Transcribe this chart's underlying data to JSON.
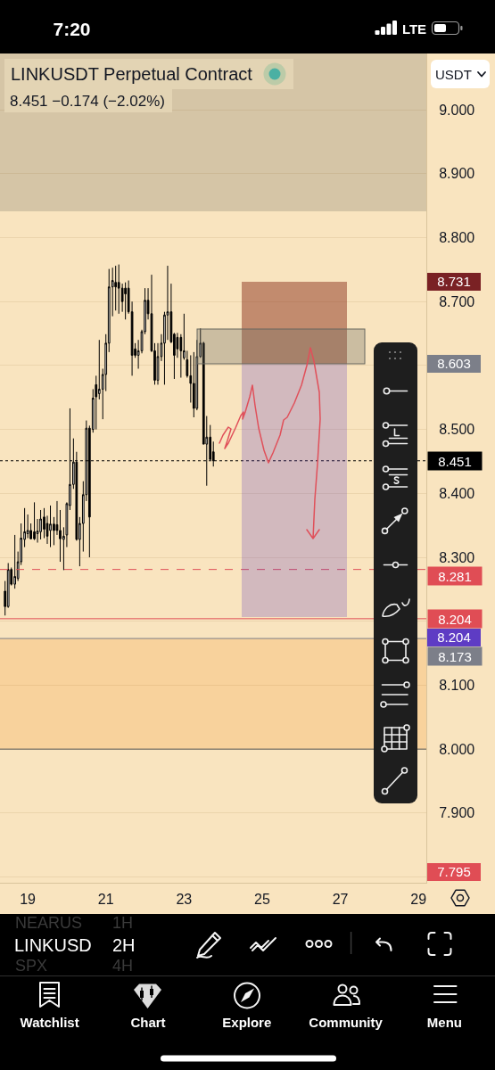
{
  "chart_data": {
    "type": "candlestick",
    "title": "LINKUSDT Perpetual Contract",
    "subtitle": "8.451 −0.174 (−2.02%)",
    "annotations": [
      "7:20",
      "LTE",
      "USDT",
      "NEARUS",
      "1H",
      "LINKUSD",
      "2H",
      "SPX",
      "4H",
      "Watchlist",
      "Chart",
      "Explore",
      "Community",
      "Menu",
      "8.731",
      "8.603",
      "8.204",
      "7.795"
    ],
    "x": [
      18.42,
      18.5,
      18.58,
      18.67,
      18.75,
      18.83,
      18.92,
      19,
      19.08,
      19.17,
      19.25,
      19.33,
      19.42,
      19.5,
      19.58,
      19.67,
      19.75,
      19.83,
      19.92,
      20,
      20.08,
      20.17,
      20.25,
      20.33,
      20.42,
      20.5,
      20.58,
      20.67,
      20.75,
      20.83,
      20.92,
      21,
      21.08,
      21.17,
      21.25,
      21.33,
      21.42,
      21.5,
      21.58,
      21.67,
      21.75,
      21.83,
      21.92,
      22,
      22.08,
      22.17,
      22.25,
      22.33,
      22.42,
      22.5,
      22.58,
      22.67,
      22.75,
      22.83,
      22.92,
      23,
      23.08,
      23.17,
      23.25,
      23.33,
      23.42,
      23.5,
      23.58,
      23.67,
      23.75
    ],
    "ohlc": [
      [
        8.247,
        8.263,
        8.209,
        8.223
      ],
      [
        8.223,
        8.291,
        8.221,
        8.281
      ],
      [
        8.281,
        8.284,
        8.256,
        8.258
      ],
      [
        8.258,
        8.335,
        8.251,
        8.27
      ],
      [
        8.267,
        8.309,
        8.263,
        8.293
      ],
      [
        8.293,
        8.353,
        8.288,
        8.33
      ],
      [
        8.328,
        8.377,
        8.316,
        8.34
      ],
      [
        8.337,
        8.367,
        8.33,
        8.342
      ],
      [
        8.342,
        8.353,
        8.328,
        8.329
      ],
      [
        8.34,
        8.386,
        8.327,
        8.329
      ],
      [
        8.337,
        8.36,
        8.323,
        8.341
      ],
      [
        8.34,
        8.374,
        8.328,
        8.36
      ],
      [
        8.363,
        8.377,
        8.33,
        8.344
      ],
      [
        8.353,
        8.365,
        8.321,
        8.333
      ],
      [
        8.342,
        8.381,
        8.316,
        8.352
      ],
      [
        8.352,
        8.363,
        8.319,
        8.342
      ],
      [
        8.351,
        8.388,
        8.335,
        8.342
      ],
      [
        8.342,
        8.374,
        8.293,
        8.329
      ],
      [
        8.328,
        8.347,
        8.28,
        8.333
      ],
      [
        8.335,
        8.386,
        8.316,
        8.384
      ],
      [
        8.381,
        8.533,
        8.374,
        8.414
      ],
      [
        8.414,
        8.486,
        8.407,
        8.449
      ],
      [
        8.449,
        8.465,
        8.326,
        8.328
      ],
      [
        8.328,
        8.363,
        8.286,
        8.353
      ],
      [
        8.353,
        8.419,
        8.309,
        8.398
      ],
      [
        8.398,
        8.514,
        8.388,
        8.502
      ],
      [
        8.502,
        8.506,
        8.3,
        8.363
      ],
      [
        8.5,
        8.563,
        8.495,
        8.549
      ],
      [
        8.57,
        8.584,
        8.5,
        8.551
      ],
      [
        8.556,
        8.64,
        8.547,
        8.563
      ],
      [
        8.563,
        8.595,
        8.516,
        8.586
      ],
      [
        8.586,
        8.649,
        8.56,
        8.635
      ],
      [
        8.635,
        8.751,
        8.621,
        8.723
      ],
      [
        8.723,
        8.753,
        8.677,
        8.733
      ],
      [
        8.73,
        8.756,
        8.686,
        8.723
      ],
      [
        8.73,
        8.758,
        8.681,
        8.721
      ],
      [
        8.721,
        8.728,
        8.684,
        8.7
      ],
      [
        8.721,
        8.73,
        8.672,
        8.712
      ],
      [
        8.721,
        8.733,
        8.681,
        8.684
      ],
      [
        8.684,
        8.7,
        8.584,
        8.616
      ],
      [
        8.626,
        8.635,
        8.612,
        8.616
      ],
      [
        8.616,
        8.64,
        8.595,
        8.623
      ],
      [
        8.623,
        8.656,
        8.619,
        8.653
      ],
      [
        8.653,
        8.721,
        8.649,
        8.702
      ],
      [
        8.702,
        8.721,
        8.672,
        8.681
      ],
      [
        8.681,
        8.742,
        8.621,
        8.623
      ],
      [
        8.623,
        8.635,
        8.57,
        8.577
      ],
      [
        8.577,
        8.635,
        8.57,
        8.614
      ],
      [
        8.614,
        8.649,
        8.607,
        8.635
      ],
      [
        8.635,
        8.684,
        8.57,
        8.679
      ],
      [
        8.679,
        8.756,
        8.64,
        8.684
      ],
      [
        8.684,
        8.728,
        8.635,
        8.637
      ],
      [
        8.649,
        8.651,
        8.579,
        8.616
      ],
      [
        8.644,
        8.651,
        8.612,
        8.626
      ],
      [
        8.644,
        8.649,
        8.581,
        8.623
      ],
      [
        8.612,
        8.681,
        8.609,
        8.623
      ],
      [
        8.609,
        8.623,
        8.581,
        8.584
      ],
      [
        8.584,
        8.616,
        8.542,
        8.572
      ],
      [
        8.572,
        8.621,
        8.519,
        8.533
      ],
      [
        8.533,
        8.64,
        8.53,
        8.614
      ],
      [
        8.614,
        8.658,
        8.612,
        8.635
      ],
      [
        8.635,
        8.637,
        8.477,
        8.477
      ],
      [
        8.477,
        8.521,
        8.412,
        8.488
      ],
      [
        8.488,
        8.507,
        8.453,
        8.453
      ],
      [
        8.465,
        8.481,
        8.442,
        8.451
      ]
    ],
    "xlim": [
      18.29,
      29.2
    ],
    "xticks": [
      19,
      21,
      23,
      25,
      27,
      29
    ],
    "ylim": [
      7.791,
      9.088
    ],
    "yticks": [
      {
        "value": 7.8,
        "label": null
      },
      {
        "value": 7.9,
        "label": "7.900"
      },
      {
        "value": 8,
        "label": "8.000"
      },
      {
        "value": 8.1,
        "label": "8.100"
      },
      {
        "value": 8.2,
        "label": null
      },
      {
        "value": 8.3,
        "label": "8.300"
      },
      {
        "value": 8.4,
        "label": "8.400"
      },
      {
        "value": 8.5,
        "label": "8.500"
      },
      {
        "value": 8.6,
        "label": null
      },
      {
        "value": 8.7,
        "label": "8.700"
      },
      {
        "value": 8.8,
        "label": "8.800"
      },
      {
        "value": 8.9,
        "label": "8.900"
      },
      {
        "value": 9,
        "label": "9.000"
      }
    ],
    "grid": "y",
    "ref_lines": [
      {
        "axis": "y",
        "value": 8.451,
        "label": "8.451",
        "color": "#000000",
        "line_style": "dotted"
      },
      {
        "axis": "y",
        "value": 8.281,
        "label": "8.281",
        "color": "#e04d55",
        "line_style": "dashed"
      },
      {
        "axis": "y",
        "value": 8.204,
        "label": "8.204",
        "color": "#e04d55",
        "line_style": "solid"
      },
      {
        "axis": "y",
        "value": 8.173,
        "label": "8.173",
        "color": "#7c7f89",
        "line_style": "solid"
      },
      {
        "axis": "y",
        "value": 8,
        "color": "#5a5a5a",
        "line_style": "solid"
      }
    ],
    "bands": [
      {
        "axis": "y",
        "from": 8.841,
        "to": 9.088,
        "color": "#d5c5a6"
      },
      {
        "axis": "y",
        "from": 8,
        "to": 8.173,
        "color": "#f8d29c"
      }
    ]
  }
}
